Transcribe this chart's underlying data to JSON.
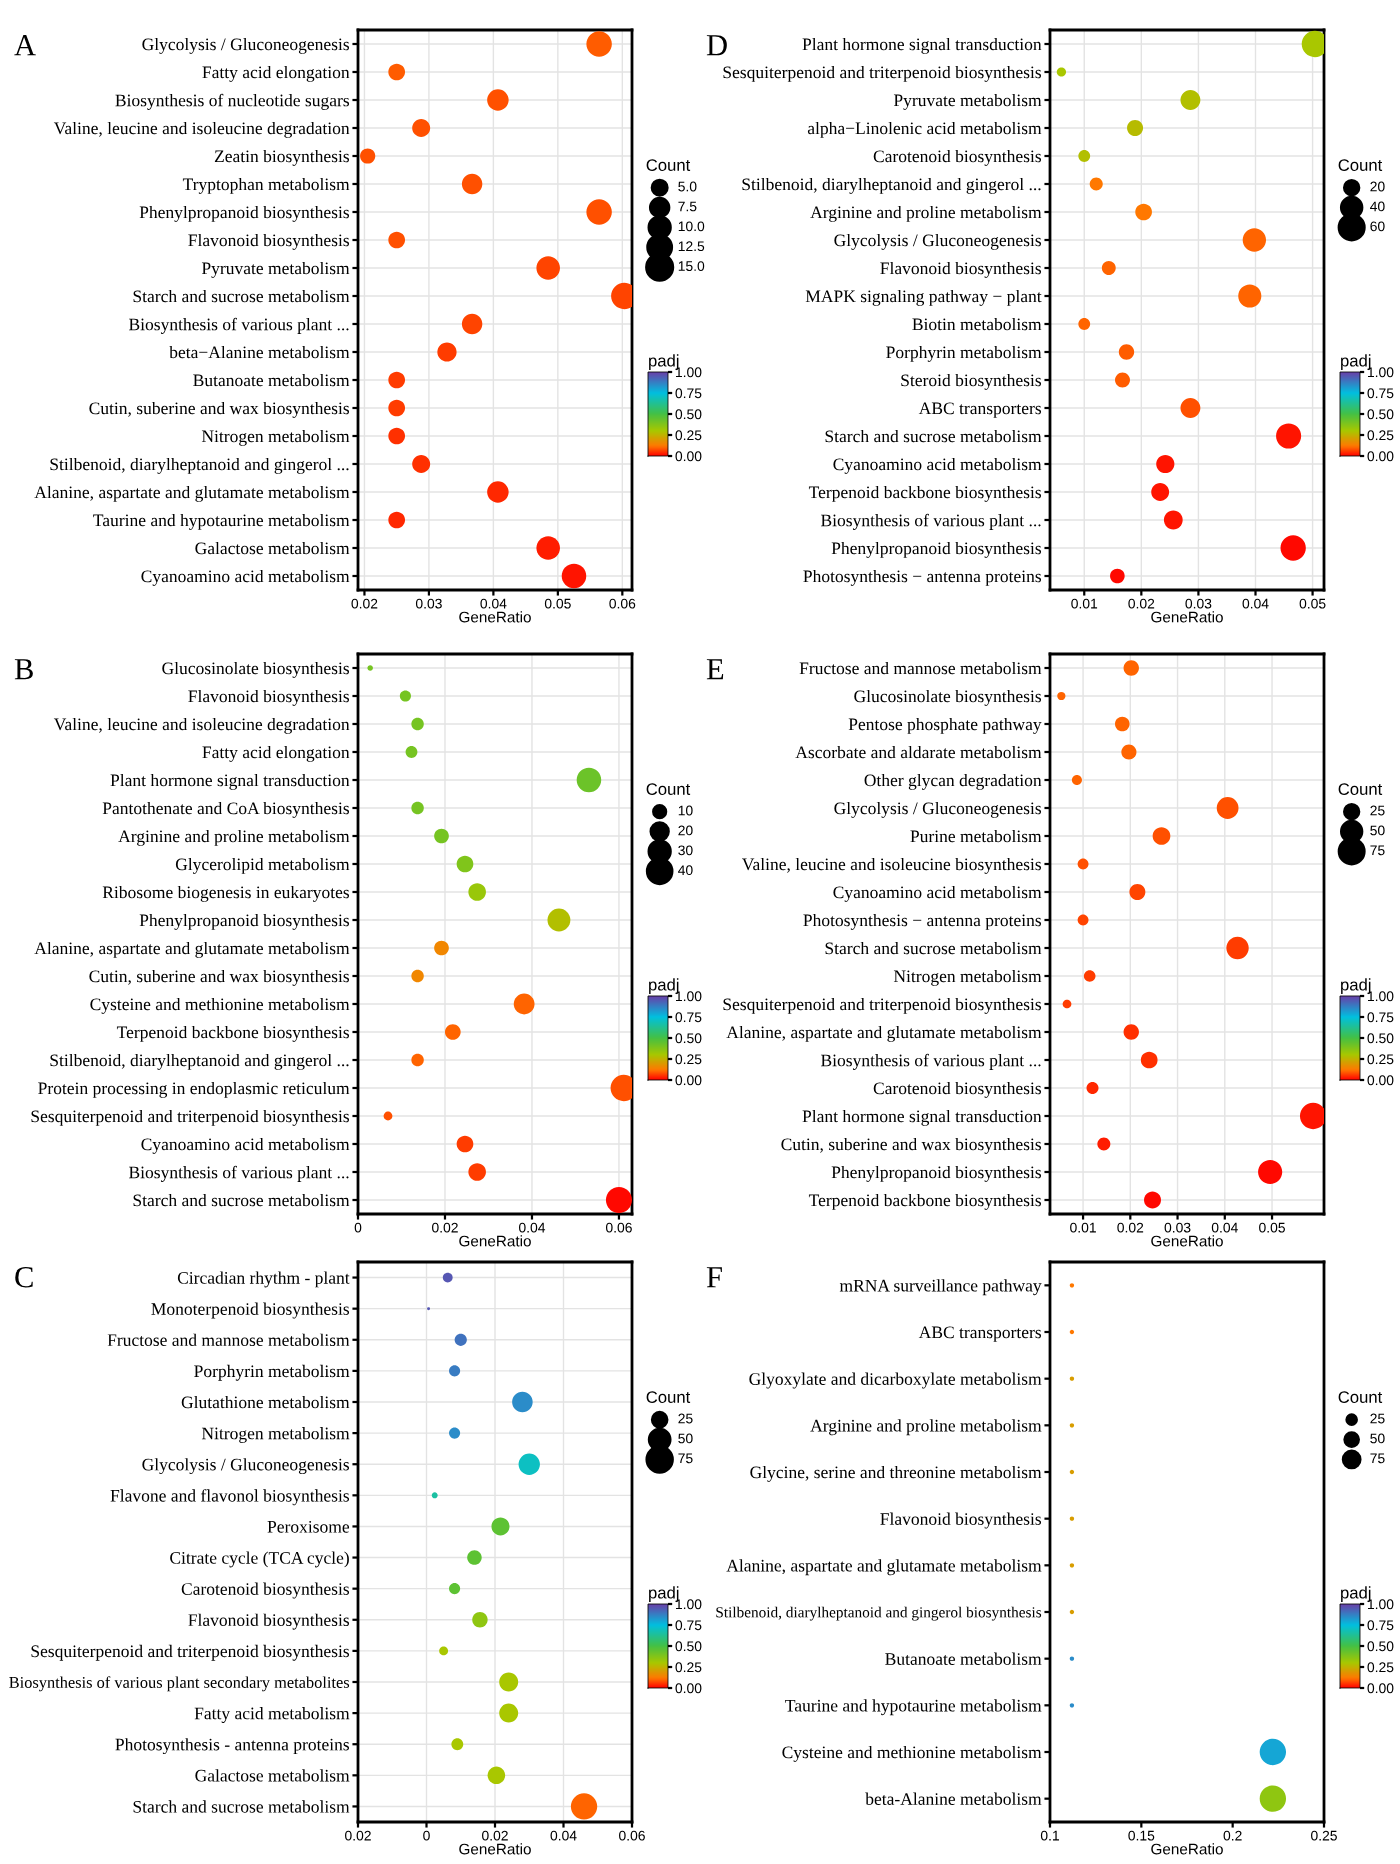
{
  "chart_data": [
    {
      "type": "bubble",
      "title": "A",
      "orientation": "horizontal",
      "xlabel": "GeneRatio",
      "legend_title": "Count",
      "clabel": "padj",
      "grid": true,
      "categories": [
        "Glycolysis / Gluconeogenesis",
        "Fatty acid elongation",
        "Biosynthesis of nucleotide sugars",
        "Valine, leucine and isoleucine degradation",
        "Zeatin biosynthesis",
        "Tryptophan metabolism",
        "Phenylpropanoid biosynthesis",
        "Flavonoid biosynthesis",
        "Pyruvate metabolism",
        "Starch and sucrose metabolism",
        "Biosynthesis of various plant ...",
        "beta−Alanine metabolism",
        "Butanoate metabolism",
        "Cutin, suberine and wax biosynthesis",
        "Nitrogen metabolism",
        "Stilbenoid, diarylheptanoid and gingerol ...",
        "Alanine, aspartate and glutamate metabolism",
        "Taurine and hypotaurine metabolism",
        "Galactose metabolism",
        "Cyanoamino acid metabolism"
      ],
      "values": [
        0.0564,
        0.025,
        0.0407,
        0.0288,
        0.0205,
        0.0367,
        0.0564,
        0.025,
        0.0485,
        0.0603,
        0.0367,
        0.0328,
        0.025,
        0.025,
        0.025,
        0.0288,
        0.0407,
        0.025,
        0.0485,
        0.0525
      ],
      "sizes": [
        14,
        6,
        10,
        7,
        5,
        9,
        14,
        6,
        12,
        15,
        9,
        8,
        6,
        6,
        6,
        7,
        10,
        6,
        12,
        13
      ],
      "size_legend": [
        {
          "value": 5,
          "label": "5.0"
        },
        {
          "value": 7.5,
          "label": "7.5"
        },
        {
          "value": 10,
          "label": "10.0"
        },
        {
          "value": 12.5,
          "label": "12.5"
        },
        {
          "value": 15,
          "label": "15.0"
        }
      ],
      "cvalues": [
        0.09,
        0.09,
        0.08,
        0.08,
        0.08,
        0.08,
        0.08,
        0.08,
        0.07,
        0.07,
        0.07,
        0.06,
        0.06,
        0.06,
        0.05,
        0.05,
        0.04,
        0.04,
        0.03,
        0.02
      ],
      "clim": [
        0,
        1
      ],
      "cticks": [
        {
          "value": 0,
          "label": "0.00"
        },
        {
          "value": 0.25,
          "label": "0.25"
        },
        {
          "value": 0.5,
          "label": "0.50"
        },
        {
          "value": 0.75,
          "label": "0.75"
        },
        {
          "value": 1,
          "label": "1.00"
        }
      ],
      "xlim": [
        0.019,
        0.0615
      ],
      "xticks": [
        0.02,
        0.03,
        0.04,
        0.05,
        0.06
      ]
    },
    {
      "type": "bubble",
      "title": "D",
      "orientation": "horizontal",
      "xlabel": "GeneRatio",
      "legend_title": "Count",
      "clabel": "padj",
      "grid": true,
      "categories": [
        "Plant hormone signal transduction",
        "Sesquiterpenoid and triterpenoid biosynthesis",
        "Pyruvate metabolism",
        "alpha−Linolenic acid metabolism",
        "Carotenoid biosynthesis",
        "Stilbenoid, diarylheptanoid and gingerol ...",
        "Arginine and proline metabolism",
        "Glycolysis / Gluconeogenesis",
        "Flavonoid biosynthesis",
        "MAPK signaling pathway − plant",
        "Biotin metabolism",
        "Porphyrin metabolism",
        "Steroid biosynthesis",
        "ABC transporters",
        "Starch and sucrose metabolism",
        "Cyanoamino acid metabolism",
        "Terpenoid backbone biosynthesis",
        "Biosynthesis of various plant ...",
        "Phenylpropanoid biosynthesis",
        "Photosynthesis − antenna proteins"
      ],
      "values": [
        0.0504,
        0.006,
        0.0286,
        0.0189,
        0.01,
        0.0121,
        0.0204,
        0.0398,
        0.0143,
        0.039,
        0.01,
        0.0174,
        0.0167,
        0.0286,
        0.0458,
        0.0242,
        0.0233,
        0.0256,
        0.0466,
        0.0158
      ],
      "sizes": [
        65,
        8,
        37,
        24,
        13,
        16,
        26,
        51,
        18,
        50,
        13,
        22,
        21,
        37,
        59,
        31,
        30,
        33,
        60,
        20
      ],
      "size_legend": [
        20,
        40,
        60
      ],
      "cvalues": [
        0.3,
        0.3,
        0.28,
        0.27,
        0.28,
        0.12,
        0.12,
        0.1,
        0.1,
        0.1,
        0.1,
        0.09,
        0.09,
        0.08,
        0.02,
        0.02,
        0.02,
        0.02,
        0.01,
        0.01
      ],
      "clim": [
        0,
        1
      ],
      "cticks": [
        {
          "value": 0,
          "label": "0.00"
        },
        {
          "value": 0.25,
          "label": "0.25"
        },
        {
          "value": 0.5,
          "label": "0.50"
        },
        {
          "value": 0.75,
          "label": "0.75"
        },
        {
          "value": 1,
          "label": "1.00"
        }
      ],
      "xlim": [
        0.004,
        0.052
      ],
      "xticks": [
        0.01,
        0.02,
        0.03,
        0.04,
        0.05
      ]
    },
    {
      "type": "bubble",
      "title": "B",
      "orientation": "horizontal",
      "xlabel": "GeneRatio",
      "legend_title": "Count",
      "clabel": "padj",
      "grid": true,
      "categories": [
        "Glucosinolate biosynthesis",
        "Flavonoid biosynthesis",
        "Valine, leucine and isoleucine degradation",
        "Fatty acid elongation",
        "Plant hormone signal transduction",
        "Pantothenate and CoA biosynthesis",
        "Arginine and proline metabolism",
        "Glycerolipid metabolism",
        "Ribosome biogenesis in eukaryotes",
        "Phenylpropanoid biosynthesis",
        "Alanine, aspartate and glutamate metabolism",
        "Cutin, suberine and wax biosynthesis",
        "Cysteine and methionine metabolism",
        "Terpenoid backbone biosynthesis",
        "Stilbenoid, diarylheptanoid and gingerol ...",
        "Protein processing in endoplasmic reticulum",
        "Sesquiterpenoid and triterpenoid biosynthesis",
        "Cyanoamino acid metabolism",
        "Biosynthesis of various plant ...",
        "Starch and sucrose metabolism"
      ],
      "values": [
        0.0028,
        0.0109,
        0.0137,
        0.0123,
        0.0531,
        0.0137,
        0.0192,
        0.0246,
        0.0274,
        0.0462,
        0.0192,
        0.0137,
        0.0382,
        0.0218,
        0.0137,
        0.0611,
        0.0069,
        0.0246,
        0.0274,
        0.06
      ],
      "sizes": [
        2,
        8,
        10,
        9,
        39,
        10,
        14,
        18,
        20,
        34,
        14,
        10,
        28,
        16,
        10,
        45,
        5,
        18,
        20,
        44
      ],
      "size_legend": [
        10,
        20,
        30,
        40
      ],
      "cvalues": [
        0.4,
        0.4,
        0.4,
        0.4,
        0.42,
        0.4,
        0.4,
        0.38,
        0.33,
        0.28,
        0.15,
        0.15,
        0.1,
        0.1,
        0.1,
        0.08,
        0.08,
        0.06,
        0.06,
        0.01
      ],
      "clim": [
        0,
        1
      ],
      "cticks": [
        {
          "value": 0,
          "label": "0.00"
        },
        {
          "value": 0.25,
          "label": "0.25"
        },
        {
          "value": 0.5,
          "label": "0.50"
        },
        {
          "value": 0.75,
          "label": "0.75"
        },
        {
          "value": 1,
          "label": "1.00"
        }
      ],
      "xlim": [
        0,
        0.063
      ],
      "xticks": [
        0,
        0.02,
        0.04,
        0.06
      ]
    },
    {
      "type": "bubble",
      "title": "E",
      "orientation": "horizontal",
      "xlabel": "GeneRatio",
      "legend_title": "Count",
      "clabel": "padj",
      "grid": true,
      "categories": [
        "Fructose and mannose metabolism",
        "Glucosinolate biosynthesis",
        "Pentose phosphate pathway",
        "Ascorbate and aldarate metabolism",
        "Other glycan degradation",
        "Glycolysis / Gluconeogenesis",
        "Purine metabolism",
        "Valine, leucine and isoleucine biosynthesis",
        "Cyanoamino acid metabolism",
        "Photosynthesis − antenna proteins",
        "Starch and sucrose metabolism",
        "Nitrogen metabolism",
        "Sesquiterpenoid and triterpenoid biosynthesis",
        "Alanine, aspartate and glutamate metabolism",
        "Biosynthesis of various plant ...",
        "Carotenoid biosynthesis",
        "Plant hormone signal transduction",
        "Cutin, suberine and wax biosynthesis",
        "Phenylpropanoid biosynthesis",
        "Terpenoid backbone biosynthesis"
      ],
      "values": [
        0.0202,
        0.0054,
        0.0183,
        0.0197,
        0.0087,
        0.0406,
        0.0266,
        0.01,
        0.0215,
        0.01,
        0.0427,
        0.0114,
        0.0066,
        0.0202,
        0.024,
        0.012,
        0.0587,
        0.0144,
        0.0496,
        0.0247
      ],
      "sizes": [
        28,
        8,
        25,
        27,
        12,
        56,
        37,
        14,
        30,
        14,
        59,
        16,
        9,
        28,
        33,
        17,
        82,
        20,
        69,
        34
      ],
      "size_legend": [
        25,
        50,
        75
      ],
      "cvalues": [
        0.1,
        0.1,
        0.1,
        0.1,
        0.1,
        0.08,
        0.08,
        0.08,
        0.07,
        0.07,
        0.06,
        0.06,
        0.06,
        0.05,
        0.05,
        0.04,
        0.02,
        0.03,
        0.01,
        0.01
      ],
      "clim": [
        0,
        1
      ],
      "cticks": [
        {
          "value": 0,
          "label": "0.00"
        },
        {
          "value": 0.25,
          "label": "0.25"
        },
        {
          "value": 0.5,
          "label": "0.50"
        },
        {
          "value": 0.75,
          "label": "0.75"
        },
        {
          "value": 1,
          "label": "1.00"
        }
      ],
      "xlim": [
        0.003,
        0.061
      ],
      "xticks": [
        0.01,
        0.02,
        0.03,
        0.04,
        0.05
      ]
    },
    {
      "type": "bubble",
      "title": "C",
      "orientation": "horizontal",
      "xlabel": "GeneRatio",
      "legend_title": "Count",
      "clabel": "padj",
      "grid": true,
      "categories": [
        "Circadian rhythm - plant",
        "Monoterpenoid biosynthesis",
        "Fructose and mannose metabolism",
        "Porphyrin metabolism",
        "Glutathione metabolism",
        "Nitrogen metabolism",
        "Glycolysis / Gluconeogenesis",
        "Flavone and flavonol biosynthesis",
        "Peroxisome",
        "Citrate cycle (TCA cycle)",
        "Carotenoid biosynthesis",
        "Flavonoid biosynthesis",
        "Sesquiterpenoid and triterpenoid biosynthesis",
        "Biosynthesis of various plant secondary metabolites",
        "Fatty acid metabolism",
        "Photosynthesis - antenna proteins",
        "Galactose metabolism",
        "Starch and sucrose metabolism"
      ],
      "values": [
        0.0062,
        0.0006,
        0.01,
        0.0082,
        0.028,
        0.0082,
        0.03,
        0.0024,
        0.0216,
        0.014,
        0.0082,
        0.0156,
        0.005,
        0.024,
        0.024,
        0.009,
        0.0204,
        0.046
      ],
      "sizes": [
        11,
        1,
        17,
        14,
        48,
        14,
        52,
        4,
        37,
        24,
        14,
        27,
        9,
        41,
        41,
        16,
        35,
        79
      ],
      "size_legend": [
        25,
        50,
        75
      ],
      "cvalues": [
        0.95,
        0.95,
        0.9,
        0.88,
        0.85,
        0.85,
        0.7,
        0.65,
        0.45,
        0.45,
        0.45,
        0.35,
        0.3,
        0.3,
        0.3,
        0.3,
        0.3,
        0.1
      ],
      "clim": [
        0,
        1
      ],
      "cticks": [
        {
          "value": 0,
          "label": "0.00"
        },
        {
          "value": 0.25,
          "label": "0.25"
        },
        {
          "value": 0.5,
          "label": "0.50"
        },
        {
          "value": 0.75,
          "label": "0.75"
        },
        {
          "value": 1,
          "label": "1.00"
        }
      ],
      "xlim": [
        -0.02,
        0.06
      ],
      "xticks": [
        {
          "value": -0.02,
          "label": "0.02"
        },
        0,
        0.02,
        0.04,
        0.06
      ]
    },
    {
      "type": "bubble",
      "title": "F",
      "orientation": "horizontal",
      "xlabel": "GeneRatio",
      "legend_title": "Count",
      "clabel": "padj",
      "grid": false,
      "categories": [
        "mRNA surveillance pathway",
        "ABC transporters",
        "Glyoxylate and dicarboxylate metabolism",
        "Arginine and proline metabolism",
        "Glycine, serine and threonine metabolism",
        "Flavonoid biosynthesis",
        "Alanine, aspartate and glutamate metabolism",
        "Stilbenoid, diarylheptanoid and gingerol biosynthesis",
        "Butanoate metabolism",
        "Taurine and hypotaurine metabolism",
        "Cysteine and methionine metabolism",
        "beta-Alanine metabolism"
      ],
      "values": [
        0.112,
        0.112,
        0.112,
        0.112,
        0.112,
        0.112,
        0.112,
        0.112,
        0.112,
        0.112,
        0.222,
        0.222
      ],
      "sizes": [
        5,
        5,
        5,
        5,
        5,
        5,
        5,
        5,
        5,
        5,
        180,
        180
      ],
      "size_legend": [
        25,
        50,
        75
      ],
      "cvalues": [
        0.12,
        0.12,
        0.2,
        0.2,
        0.2,
        0.2,
        0.2,
        0.2,
        0.85,
        0.85,
        0.8,
        0.35
      ],
      "clim": [
        0,
        1
      ],
      "cticks": [
        {
          "value": 0,
          "label": "0.00"
        },
        {
          "value": 0.25,
          "label": "0.25"
        },
        {
          "value": 0.5,
          "label": "0.50"
        },
        {
          "value": 0.75,
          "label": "0.75"
        },
        {
          "value": 1,
          "label": "1.00"
        }
      ],
      "xlim": [
        0.1,
        0.25
      ],
      "xticks": [
        0.1,
        0.15,
        0.2,
        0.25
      ]
    }
  ]
}
